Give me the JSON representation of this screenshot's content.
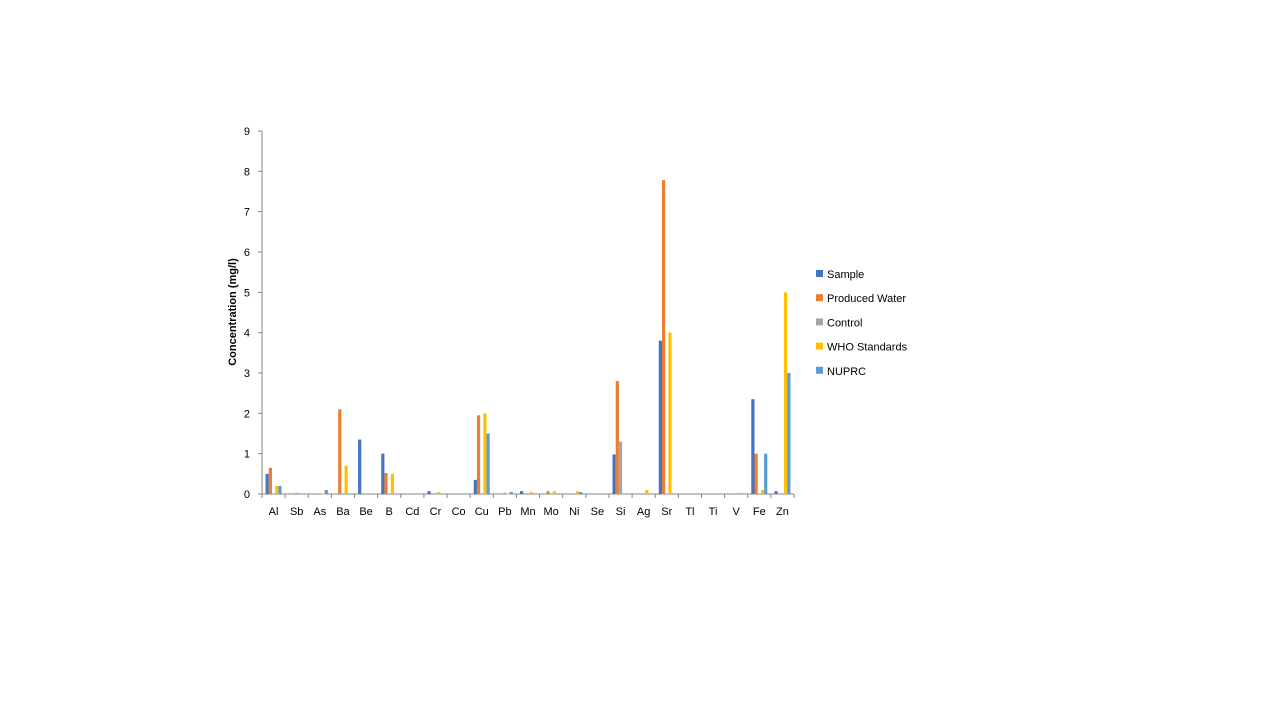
{
  "chart_data": {
    "type": "bar",
    "title": "",
    "xlabel": "",
    "ylabel": "Concentration (mg/l)",
    "ylim": [
      0,
      9
    ],
    "yticks": [
      0,
      1,
      2,
      3,
      4,
      5,
      6,
      7,
      8,
      9
    ],
    "grid": false,
    "legend_position": "right",
    "categories": [
      "Al",
      "Sb",
      "As",
      "Ba",
      "Be",
      "B",
      "Cd",
      "Cr",
      "Co",
      "Cu",
      "Pb",
      "Mn",
      "Mo",
      "Ni",
      "Se",
      "Si",
      "Ag",
      "Sr",
      "Tl",
      "Ti",
      "V",
      "Fe",
      "Zn"
    ],
    "series": [
      {
        "name": "Sample",
        "color": "#4472C4",
        "values": [
          0.5,
          0,
          0,
          0,
          1.35,
          1.0,
          0,
          0.07,
          0,
          0.35,
          0,
          0.07,
          0,
          0,
          0,
          0.98,
          0,
          3.8,
          0,
          0,
          0,
          2.35,
          0.07
        ]
      },
      {
        "name": "Produced Water",
        "color": "#ED7D31",
        "values": [
          0.65,
          0,
          0,
          2.1,
          0,
          0.52,
          0,
          0,
          0,
          1.95,
          0,
          0,
          0.07,
          0,
          0,
          2.8,
          0,
          7.78,
          0,
          0,
          0,
          1.0,
          0
        ]
      },
      {
        "name": "Control",
        "color": "#A5A5A5",
        "values": [
          0,
          0.03,
          0,
          0,
          0,
          0,
          0,
          0,
          0,
          0,
          0.03,
          0,
          0,
          0,
          0,
          1.3,
          0,
          0,
          0,
          0,
          0,
          0,
          0
        ]
      },
      {
        "name": "WHO Standards",
        "color": "#FFC000",
        "values": [
          0.2,
          0,
          0.01,
          0.7,
          0,
          0.5,
          0,
          0.05,
          0,
          2.0,
          0.01,
          0.05,
          0.07,
          0.07,
          0,
          0,
          0.1,
          4.0,
          0,
          0,
          0.03,
          0.1,
          5.0
        ]
      },
      {
        "name": "NUPRC",
        "color": "#5B9BD5",
        "values": [
          0.2,
          0,
          0.1,
          0,
          0,
          0,
          0,
          0,
          0,
          1.5,
          0.05,
          0,
          0,
          0.05,
          0,
          0,
          0,
          0,
          0,
          0,
          0,
          1.0,
          3.0
        ]
      }
    ]
  }
}
